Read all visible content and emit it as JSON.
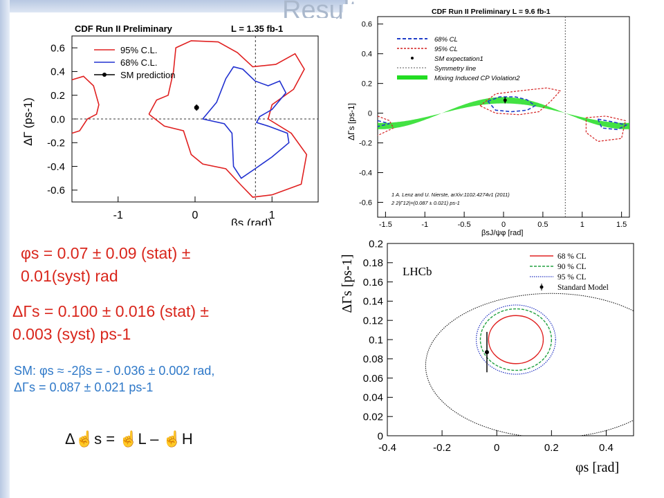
{
  "slide": {
    "title": "Results"
  },
  "text": {
    "phi_line1": "φs = 0.07 ± 0.09 (stat) ±",
    "phi_line2": "0.01(syst) rad",
    "dg_line1": "ΔΓs = 0.100 ± 0.016 (stat) ±",
    "dg_line2": "0.003 (syst) ps-1",
    "sm_line1": "SM: φs ≈ -2βs = - 0.036 ± 0.002 rad,",
    "sm_line2": "ΔΓs = 0.087 ± 0.021 ps-1",
    "def_line": "Δ☝s = ☝L – ☝H"
  },
  "chart_data": [
    {
      "type": "contour",
      "title": "CDF Run II Preliminary",
      "title_right": "L = 1.35 fb-1",
      "xlabel": "βs (rad)",
      "ylabel": "ΔΓ (ps-1)",
      "xlim": [
        -1.6,
        1.6
      ],
      "ylim": [
        -0.7,
        0.7
      ],
      "xticks": [
        "-1",
        "0",
        "1"
      ],
      "yticks": [
        "0.6",
        "0.4",
        "0.2",
        "0.0",
        "-0.2",
        "-0.4",
        "-0.6"
      ],
      "legend": [
        "95% C.L.",
        "68% C.L.",
        "SM prediction"
      ],
      "legend_position": "top-left",
      "colors": {
        "c95": "#e02020",
        "c68": "#2030d0",
        "sm": "#000000"
      },
      "sm_point": {
        "x": 0.02,
        "y": 0.096,
        "yerr": 0.025
      },
      "reference_lines": {
        "x": 0.785,
        "y": 0.0
      },
      "contours": {
        "c95_main": [
          [
            -0.6,
            0.04
          ],
          [
            -0.5,
            0.16
          ],
          [
            -0.35,
            0.2
          ],
          [
            -0.28,
            0.4
          ],
          [
            -0.25,
            0.6
          ],
          [
            -0.05,
            0.66
          ],
          [
            0.3,
            0.65
          ],
          [
            0.55,
            0.56
          ],
          [
            0.75,
            0.44
          ],
          [
            1.05,
            0.46
          ],
          [
            1.3,
            0.55
          ],
          [
            1.42,
            0.42
          ],
          [
            1.28,
            0.25
          ],
          [
            1.0,
            0.12
          ],
          [
            0.95,
            0.0
          ],
          [
            1.25,
            -0.12
          ],
          [
            1.45,
            -0.3
          ],
          [
            1.38,
            -0.55
          ],
          [
            1.0,
            -0.64
          ],
          [
            0.75,
            -0.66
          ],
          [
            0.6,
            -0.56
          ],
          [
            0.4,
            -0.42
          ],
          [
            0.1,
            -0.38
          ],
          [
            -0.05,
            -0.3
          ],
          [
            -0.15,
            -0.1
          ],
          [
            -0.4,
            -0.06
          ],
          [
            -0.6,
            0.04
          ]
        ],
        "c95_left": [
          [
            -1.6,
            0.33
          ],
          [
            -1.45,
            0.36
          ],
          [
            -1.32,
            0.28
          ],
          [
            -1.25,
            0.12
          ],
          [
            -1.28,
            0.04
          ],
          [
            -1.4,
            0.0
          ],
          [
            -1.5,
            -0.1
          ],
          [
            -1.6,
            -0.12
          ]
        ],
        "c68": [
          [
            0.1,
            0.0
          ],
          [
            0.28,
            0.14
          ],
          [
            0.4,
            0.34
          ],
          [
            0.5,
            0.44
          ],
          [
            0.62,
            0.42
          ],
          [
            0.78,
            0.32
          ],
          [
            0.95,
            0.28
          ],
          [
            1.1,
            0.32
          ],
          [
            1.18,
            0.22
          ],
          [
            1.0,
            0.08
          ],
          [
            0.84,
            0.02
          ],
          [
            0.8,
            -0.03
          ],
          [
            0.95,
            -0.06
          ],
          [
            1.2,
            -0.12
          ],
          [
            1.22,
            -0.2
          ],
          [
            1.0,
            -0.32
          ],
          [
            0.78,
            -0.42
          ],
          [
            0.6,
            -0.5
          ],
          [
            0.5,
            -0.4
          ],
          [
            0.48,
            -0.12
          ],
          [
            0.38,
            -0.04
          ],
          [
            0.1,
            0.0
          ]
        ]
      }
    },
    {
      "type": "contour",
      "title": "CDF Run II Preliminary L = 9.6 fb-1",
      "xlabel": "βsJ/ψφ [rad]",
      "ylabel": "ΔΓs [ps-1]",
      "xlim": [
        -1.6,
        1.6
      ],
      "ylim": [
        -0.7,
        0.65
      ],
      "xticks": [
        "-1.5",
        "-1",
        "-0.5",
        "0",
        "0.5",
        "1",
        "1.5"
      ],
      "yticks": [
        "0.6",
        "0.4",
        "0.2",
        "0",
        "-0.2",
        "-0.4",
        "-0.6"
      ],
      "legend": [
        "68% CL",
        "95% CL",
        "SM expectation1",
        "Symmetry line",
        "Mixing Induced CP Violation2"
      ],
      "legend_position": "top-left",
      "footnotes": [
        "1 A. Lenz and U. Nierste, arXiv:1102.4274v1 (2011)",
        "2 2|Γ12|=(0.087 ± 0.021) ps-1"
      ],
      "colors": {
        "c68": "#1e3cc8",
        "c95": "#d42020",
        "band": "#22dd22",
        "sm": "#000000"
      },
      "sm_point": {
        "x": 0.02,
        "y": 0.087,
        "yerr": 0.021
      },
      "symmetry_line": 0.785,
      "band": {
        "amplitude": 0.087,
        "halfwidth": 0.021
      },
      "contours": {
        "c68_center": [
          [
            -0.2,
            0.08
          ],
          [
            -0.05,
            0.11
          ],
          [
            0.15,
            0.11
          ],
          [
            0.3,
            0.09
          ],
          [
            0.4,
            0.05
          ],
          [
            0.3,
            0.02
          ],
          [
            0.1,
            0.01
          ],
          [
            -0.1,
            0.02
          ],
          [
            -0.2,
            0.08
          ]
        ],
        "c95_center": [
          [
            -0.3,
            0.05
          ],
          [
            -0.1,
            0.13
          ],
          [
            0.2,
            0.15
          ],
          [
            0.55,
            0.17
          ],
          [
            0.72,
            0.15
          ],
          [
            0.6,
            0.08
          ],
          [
            0.45,
            0.01
          ],
          [
            0.2,
            -0.01
          ],
          [
            -0.1,
            0.0
          ],
          [
            -0.3,
            0.05
          ]
        ],
        "c68_right": [
          [
            1.2,
            -0.04
          ],
          [
            1.4,
            -0.06
          ],
          [
            1.56,
            -0.08
          ],
          [
            1.45,
            -0.11
          ],
          [
            1.25,
            -0.1
          ],
          [
            1.2,
            -0.04
          ]
        ],
        "c95_right": [
          [
            1.05,
            -0.03
          ],
          [
            1.3,
            -0.02
          ],
          [
            1.55,
            -0.05
          ],
          [
            1.5,
            -0.17
          ],
          [
            1.2,
            -0.19
          ],
          [
            1.05,
            -0.13
          ],
          [
            1.05,
            -0.03
          ]
        ],
        "c68_left": [
          [
            -1.6,
            -0.05
          ],
          [
            -1.45,
            -0.07
          ],
          [
            -1.6,
            -0.09
          ]
        ],
        "c95_left": [
          [
            -1.6,
            -0.02
          ],
          [
            -1.45,
            -0.05
          ],
          [
            -1.4,
            -0.1
          ],
          [
            -1.6,
            -0.15
          ]
        ]
      }
    },
    {
      "type": "contour",
      "label": "LHCb",
      "xlabel": "φs [rad]",
      "ylabel": "ΔΓs [ps-1]",
      "xlim": [
        -0.4,
        0.5
      ],
      "ylim": [
        0,
        0.2
      ],
      "xticks": [
        "-0.4",
        "-0.2",
        "0",
        "0.2",
        "0.4"
      ],
      "yticks": [
        "0.2",
        "0.18",
        "0.16",
        "0.14",
        "0.12",
        "0.1",
        "0.08",
        "0.06",
        "0.04",
        "0.02",
        "0"
      ],
      "legend": [
        "68 % CL",
        "90 % CL",
        "95 % CL",
        "Standard Model"
      ],
      "legend_position": "top-right",
      "colors": {
        "c68": "#e02020",
        "c90": "#20a040",
        "c95": "#2030c0",
        "sm": "#000000",
        "outer": "#000000"
      },
      "sm_point": {
        "x": -0.036,
        "y": 0.087,
        "yerr": 0.021
      },
      "ellipses": [
        {
          "id": "c68",
          "cx": 0.07,
          "cy": 0.1,
          "rx": 0.1,
          "ry": 0.025
        },
        {
          "id": "c90",
          "cx": 0.07,
          "cy": 0.1,
          "rx": 0.13,
          "ry": 0.032
        },
        {
          "id": "c95",
          "cx": 0.07,
          "cy": 0.1,
          "rx": 0.145,
          "ry": 0.036
        },
        {
          "id": "outer",
          "cx": 0.2,
          "cy": 0.073,
          "rx": 0.46,
          "ry": 0.075
        }
      ]
    }
  ]
}
